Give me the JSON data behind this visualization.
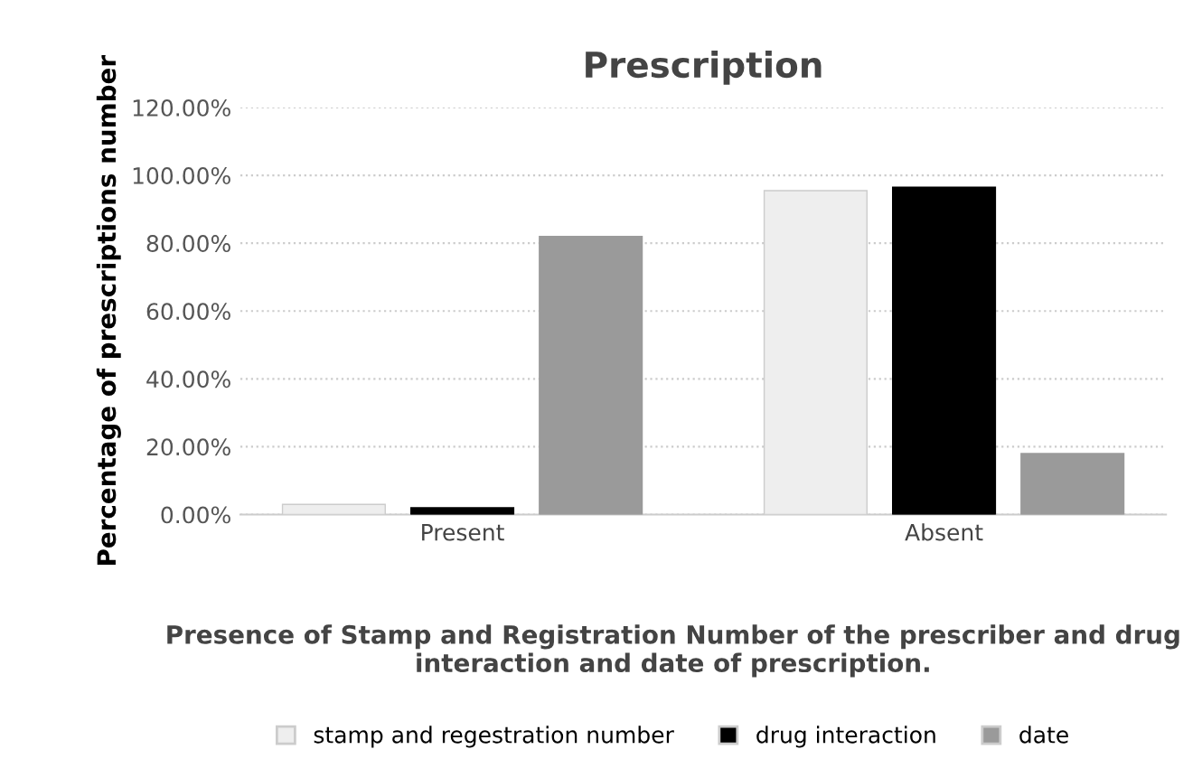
{
  "chart_data": {
    "type": "bar",
    "title": "Prescription",
    "xlabel": "Presence of Stamp and Registration Number of the prescriber and drug interaction and date of prescription.",
    "ylabel": "Percentage of prescriptions number",
    "categories": [
      "Present",
      "Absent"
    ],
    "series": [
      {
        "name": "stamp and regestration number",
        "color": "#eeeeee",
        "values": [
          3,
          95.5
        ]
      },
      {
        "name": "drug interaction",
        "color": "#000000",
        "values": [
          2,
          96.5
        ]
      },
      {
        "name": "date",
        "color": "#9a9a9a",
        "values": [
          82,
          18
        ]
      }
    ],
    "ylim": [
      0,
      120
    ],
    "yticks": [
      {
        "value": 0,
        "label": "0.00%"
      },
      {
        "value": 20,
        "label": "20.00%"
      },
      {
        "value": 40,
        "label": "40.00%"
      },
      {
        "value": 60,
        "label": "60.00%"
      },
      {
        "value": 80,
        "label": "80.00%"
      },
      {
        "value": 100,
        "label": "100.00%"
      },
      {
        "value": 120,
        "label": "120.00%"
      }
    ],
    "grid": "y",
    "legend": "bottom"
  }
}
